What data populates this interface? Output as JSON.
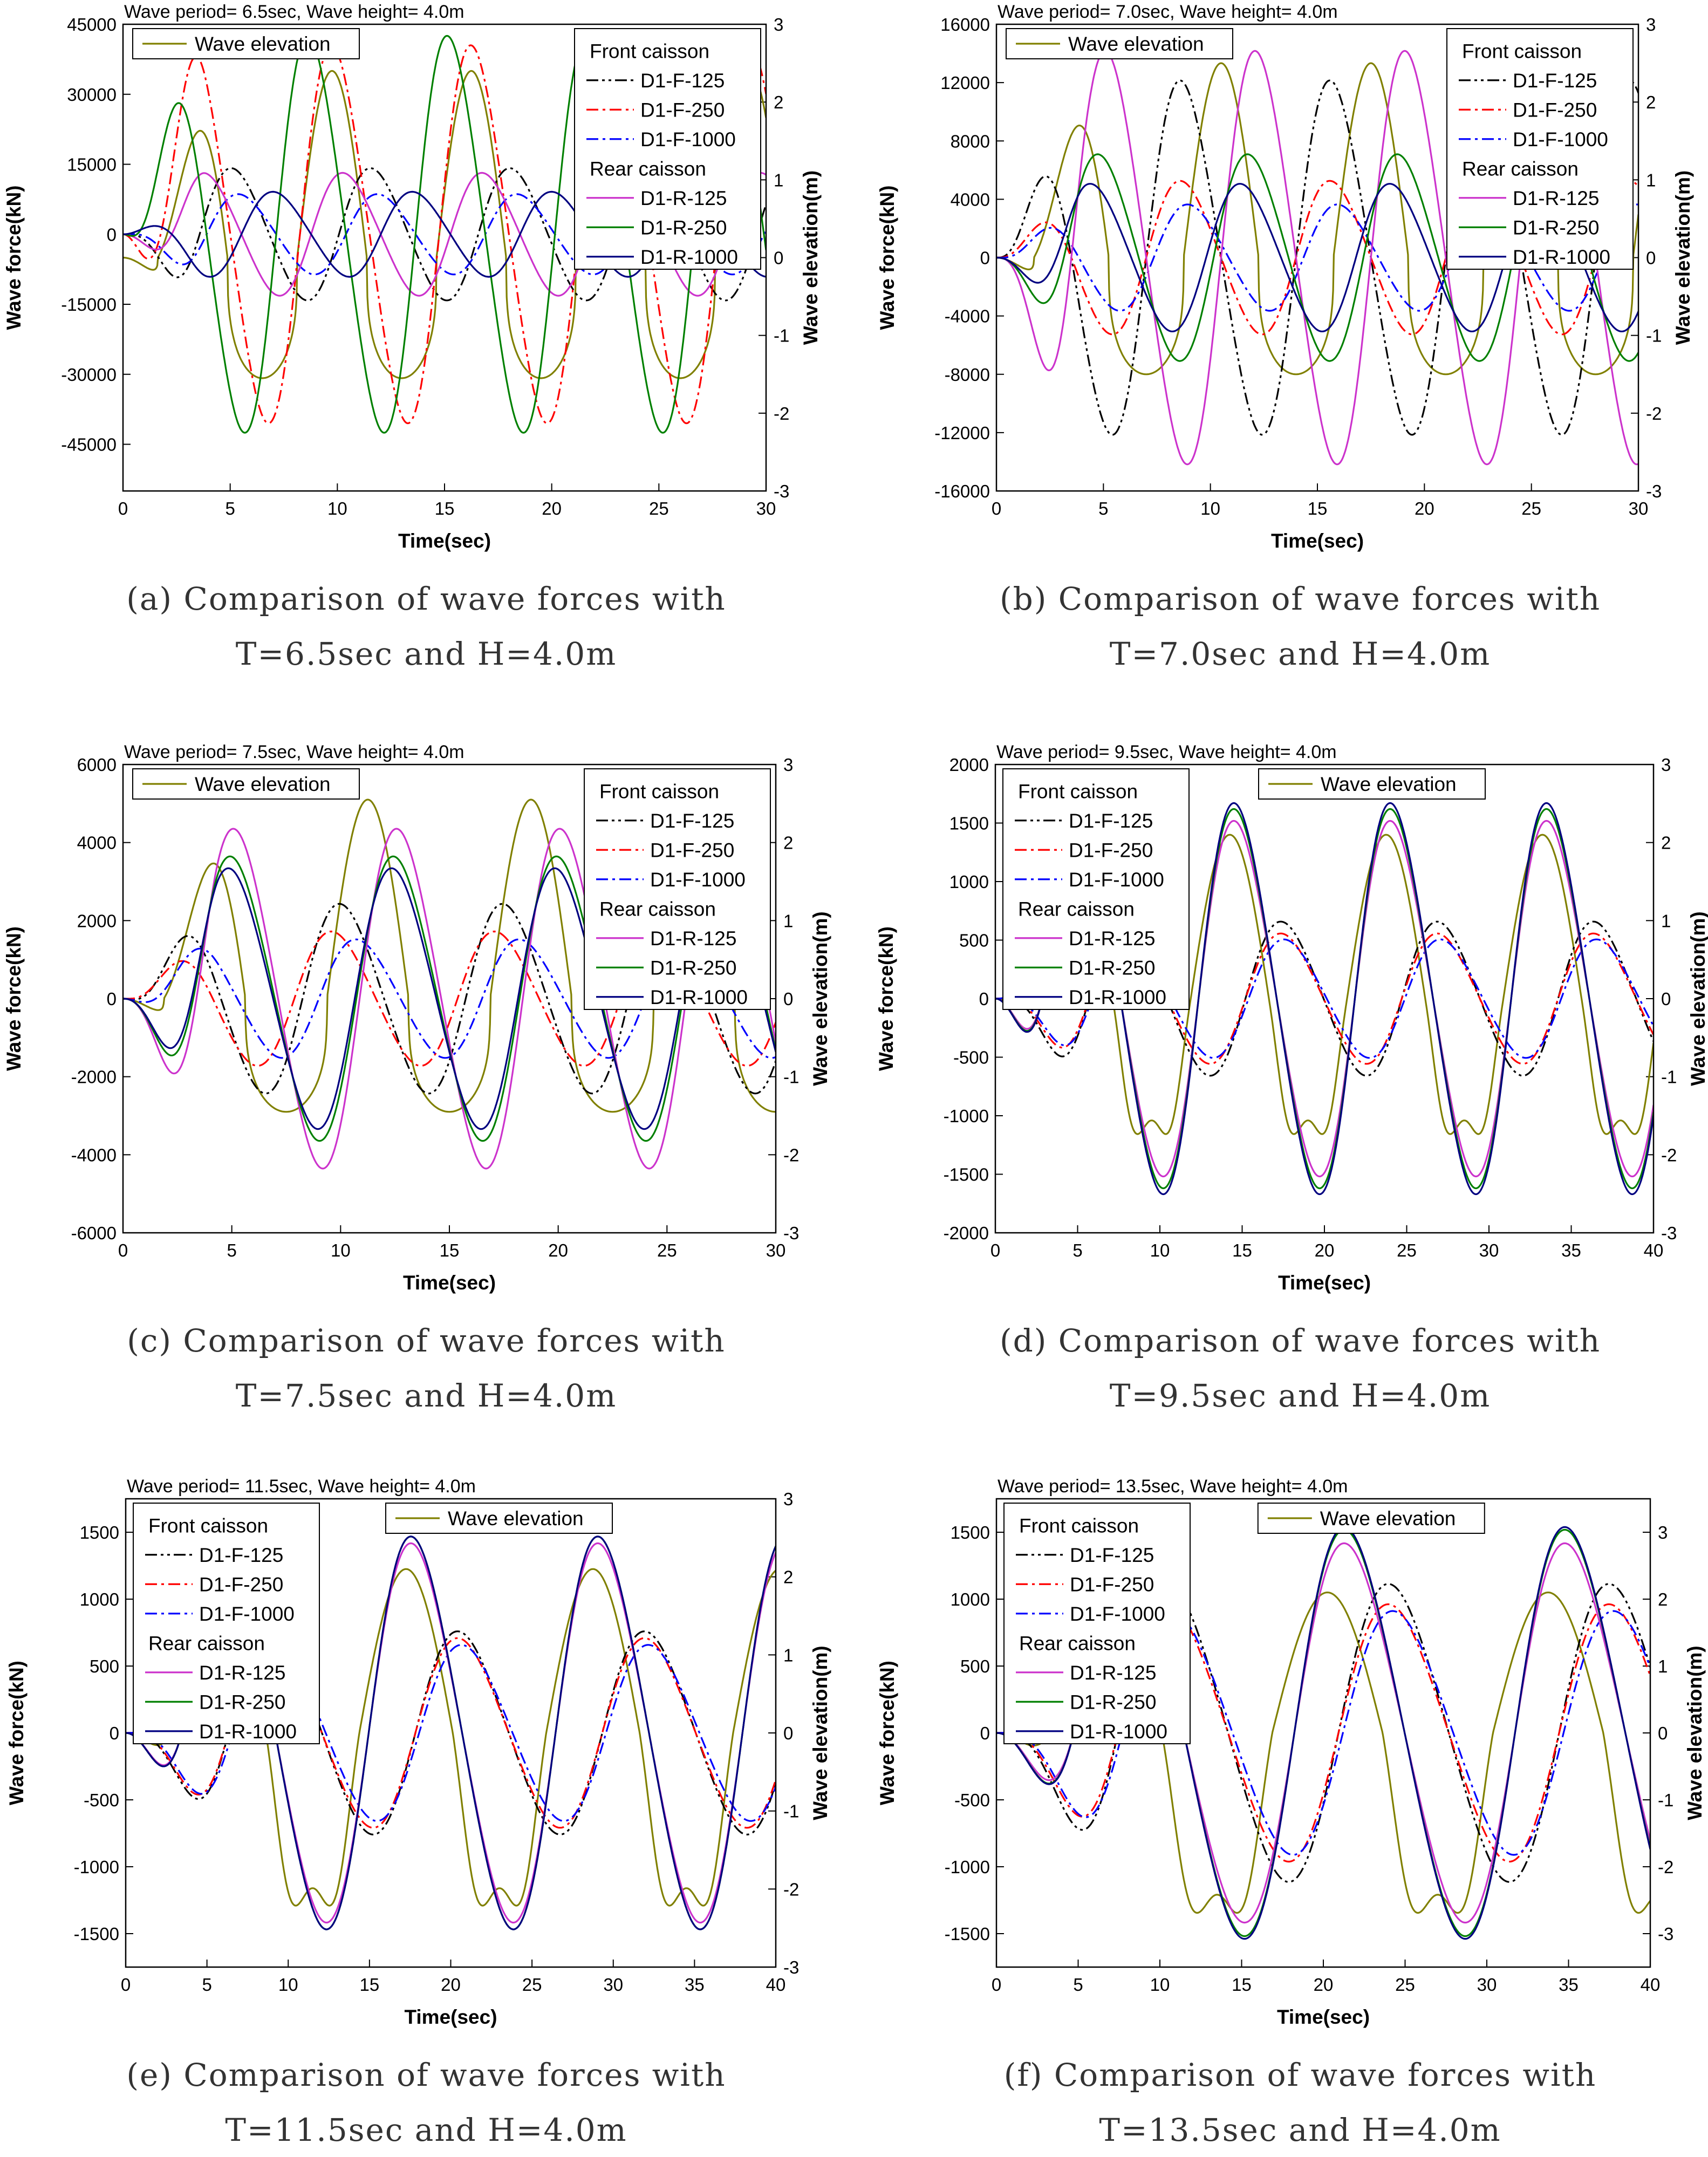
{
  "chart_data": [
    {
      "id": "a",
      "type": "line",
      "title": "Wave period= 6.5sec, Wave height= 4.0m",
      "xlabel": "Time(sec)",
      "ylabel": "Wave force(kN)",
      "y2label": "Wave elevation(m)",
      "xlim": [
        0,
        30
      ],
      "ylim": [
        -55000,
        45000
      ],
      "y2lim": [
        -3,
        3
      ],
      "xticks": [
        0,
        5,
        10,
        15,
        20,
        25,
        30
      ],
      "yticks": [
        -45000,
        -30000,
        -15000,
        0,
        15000,
        30000,
        45000
      ],
      "y2ticks": [
        -3,
        -2,
        -1,
        0,
        1,
        2,
        3
      ],
      "period": 6.5,
      "caption": [
        "(a) Comparison of wave forces with",
        "T=6.5sec and H=4.0m"
      ],
      "legend_elev": {
        "label": "Wave elevation",
        "position": "top-left"
      },
      "legend_main": {
        "position": "top-right",
        "front_header": "Front caisson",
        "rear_header": "Rear caisson"
      },
      "elevation": {
        "name": "Wave elevation",
        "color": "#808000",
        "amp_pos": 2.4,
        "amp_neg": 1.55,
        "flat_neg": true
      },
      "series": [
        {
          "name": "D1-F-125",
          "group": "front",
          "color": "#000000",
          "dash": "dashdotdot",
          "amp": 14000,
          "phase": 0.55
        },
        {
          "name": "D1-F-250",
          "group": "front",
          "color": "#ff0000",
          "dash": "dashdot",
          "amp": 40000,
          "phase": 0.27
        },
        {
          "name": "D1-F-1000",
          "group": "front",
          "color": "#0000ff",
          "dash": "dashdot",
          "amp": 8500,
          "phase": 0.6
        },
        {
          "name": "D1-R-125",
          "group": "rear",
          "color": "#cc33cc",
          "dash": "solid",
          "amp": 13000,
          "phase": 0.35
        },
        {
          "name": "D1-R-250",
          "group": "rear",
          "color": "#008000",
          "dash": "solid",
          "amp": 42000,
          "phase": 0.1
        },
        {
          "name": "D1-R-1000",
          "group": "rear",
          "color": "#000080",
          "dash": "solid",
          "amp": 9000,
          "phase": 0.85
        }
      ]
    },
    {
      "id": "b",
      "type": "line",
      "title": "Wave period= 7.0sec, Wave height= 4.0m",
      "xlabel": "Time(sec)",
      "ylabel": "Wave force(kN)",
      "y2label": "Wave elevation(m)",
      "xlim": [
        0,
        30
      ],
      "ylim": [
        -16000,
        16000
      ],
      "y2lim": [
        -3,
        3
      ],
      "xticks": [
        0,
        5,
        10,
        15,
        20,
        25,
        30
      ],
      "yticks": [
        -16000,
        -12000,
        -8000,
        -4000,
        0,
        4000,
        8000,
        12000,
        16000
      ],
      "y2ticks": [
        -3,
        -2,
        -1,
        0,
        1,
        2,
        3
      ],
      "period": 7.0,
      "caption": [
        "(b) Comparison of wave forces with",
        "T=7.0sec and H=4.0m"
      ],
      "legend_elev": {
        "label": "Wave elevation",
        "position": "top-left"
      },
      "legend_main": {
        "position": "top-right",
        "front_header": "Front caisson",
        "rear_header": "Rear caisson"
      },
      "elevation": {
        "name": "Wave elevation",
        "color": "#808000",
        "amp_pos": 2.5,
        "amp_neg": 1.5,
        "flat_neg": true
      },
      "series": [
        {
          "name": "D1-F-125",
          "group": "front",
          "color": "#000000",
          "dash": "dashdotdot",
          "amp": 12000,
          "phase": 0.0
        },
        {
          "name": "D1-F-250",
          "group": "front",
          "color": "#ff0000",
          "dash": "dashdot",
          "amp": 5200,
          "phase": 0.0
        },
        {
          "name": "D1-F-1000",
          "group": "front",
          "color": "#0000ff",
          "dash": "dashdot",
          "amp": 3600,
          "phase": 0.05
        },
        {
          "name": "D1-R-125",
          "group": "rear",
          "color": "#cc33cc",
          "dash": "solid",
          "amp": 14000,
          "phase": 0.5
        },
        {
          "name": "D1-R-250",
          "group": "rear",
          "color": "#008000",
          "dash": "solid",
          "amp": 7000,
          "phase": 0.45
        },
        {
          "name": "D1-R-1000",
          "group": "rear",
          "color": "#000080",
          "dash": "solid",
          "amp": 5000,
          "phase": 0.4
        }
      ]
    },
    {
      "id": "c",
      "type": "line",
      "title": "Wave period= 7.5sec, Wave height= 4.0m",
      "xlabel": "Time(sec)",
      "ylabel": "Wave force(kN)",
      "y2label": "Wave elevation(m)",
      "xlim": [
        0,
        30
      ],
      "ylim": [
        -6000,
        6000
      ],
      "y2lim": [
        -3,
        3
      ],
      "xticks": [
        0,
        5,
        10,
        15,
        20,
        25,
        30
      ],
      "yticks": [
        -6000,
        -4000,
        -2000,
        0,
        2000,
        4000,
        6000
      ],
      "y2ticks": [
        -3,
        -2,
        -1,
        0,
        1,
        2,
        3
      ],
      "period": 7.5,
      "caption": [
        "(c) Comparison of wave forces with",
        "T=7.5sec and H=4.0m"
      ],
      "legend_elev": {
        "label": "Wave elevation",
        "position": "top-left"
      },
      "legend_main": {
        "position": "top-right",
        "front_header": "Front caisson",
        "rear_header": "Rear caisson"
      },
      "elevation": {
        "name": "Wave elevation",
        "color": "#808000",
        "amp_pos": 2.55,
        "amp_neg": 1.45,
        "flat_neg": true
      },
      "series": [
        {
          "name": "D1-F-125",
          "group": "front",
          "color": "#000000",
          "dash": "dashdotdot",
          "amp": 2400,
          "phase": 0.1
        },
        {
          "name": "D1-F-250",
          "group": "front",
          "color": "#ff0000",
          "dash": "dashdot",
          "amp": 1700,
          "phase": 0.05
        },
        {
          "name": "D1-F-1000",
          "group": "front",
          "color": "#0000ff",
          "dash": "dashdot",
          "amp": 1500,
          "phase": 0.2
        },
        {
          "name": "D1-R-125",
          "group": "rear",
          "color": "#cc33cc",
          "dash": "solid",
          "amp": 4300,
          "phase": 0.45
        },
        {
          "name": "D1-R-250",
          "group": "rear",
          "color": "#008000",
          "dash": "solid",
          "amp": 3600,
          "phase": 0.43
        },
        {
          "name": "D1-R-1000",
          "group": "rear",
          "color": "#000080",
          "dash": "solid",
          "amp": 3300,
          "phase": 0.42
        }
      ]
    },
    {
      "id": "d",
      "type": "line",
      "title": "Wave period= 9.5sec, Wave height= 4.0m",
      "xlabel": "Time(sec)",
      "ylabel": "Wave force(kN)",
      "y2label": "Wave elevation(m)",
      "xlim": [
        0,
        40
      ],
      "ylim": [
        -2000,
        2000
      ],
      "y2lim": [
        -3,
        3
      ],
      "xticks": [
        0,
        5,
        10,
        15,
        20,
        25,
        30,
        35,
        40
      ],
      "yticks": [
        -2000,
        -1500,
        -1000,
        -500,
        0,
        500,
        1000,
        1500,
        2000
      ],
      "y2ticks": [
        -3,
        -2,
        -1,
        0,
        1,
        2,
        3
      ],
      "period": 9.5,
      "caption": [
        "(d) Comparison of wave forces with",
        "T=9.5sec and H=4.0m"
      ],
      "legend_elev": {
        "label": "Wave elevation",
        "position": "top-center"
      },
      "legend_main": {
        "position": "top-left",
        "front_header": "Front caisson",
        "rear_header": "Rear caisson"
      },
      "elevation": {
        "name": "Wave elevation",
        "color": "#808000",
        "amp_pos": 2.1,
        "amp_neg": 2.0,
        "flat_neg": false
      },
      "series": [
        {
          "name": "D1-F-125",
          "group": "front",
          "color": "#000000",
          "dash": "dashdotdot",
          "amp": 650,
          "phase": 0.6
        },
        {
          "name": "D1-F-250",
          "group": "front",
          "color": "#ff0000",
          "dash": "dashdot",
          "amp": 550,
          "phase": 0.6
        },
        {
          "name": "D1-F-1000",
          "group": "front",
          "color": "#0000ff",
          "dash": "dashdot",
          "amp": 500,
          "phase": 0.62
        },
        {
          "name": "D1-R-125",
          "group": "rear",
          "color": "#cc33cc",
          "dash": "solid",
          "amp": 1500,
          "phase": 0.3
        },
        {
          "name": "D1-R-250",
          "group": "rear",
          "color": "#008000",
          "dash": "solid",
          "amp": 1600,
          "phase": 0.3
        },
        {
          "name": "D1-R-1000",
          "group": "rear",
          "color": "#000080",
          "dash": "solid",
          "amp": 1650,
          "phase": 0.3
        }
      ]
    },
    {
      "id": "e",
      "type": "line",
      "title": "Wave period= 11.5sec, Wave height= 4.0m",
      "xlabel": "Time(sec)",
      "ylabel": "Wave force(kN)",
      "y2label": "Wave elevation(m)",
      "xlim": [
        0,
        40
      ],
      "ylim": [
        -1750,
        1750
      ],
      "y2lim": [
        -3,
        3
      ],
      "xticks": [
        0,
        5,
        10,
        15,
        20,
        25,
        30,
        35,
        40
      ],
      "yticks": [
        -1500,
        -1000,
        -500,
        0,
        500,
        1000,
        1500
      ],
      "y2ticks": [
        -3,
        -2,
        -1,
        0,
        1,
        2,
        3
      ],
      "period": 11.5,
      "caption": [
        "(e) Comparison of wave forces with",
        "T=11.5sec and H=4.0m"
      ],
      "legend_elev": {
        "label": "Wave elevation",
        "position": "top-center"
      },
      "legend_main": {
        "position": "top-left",
        "front_header": "Front caisson",
        "rear_header": "Rear caisson"
      },
      "elevation": {
        "name": "Wave elevation",
        "color": "#808000",
        "amp_pos": 2.1,
        "amp_neg": 2.55,
        "flat_neg": false
      },
      "series": [
        {
          "name": "D1-F-125",
          "group": "front",
          "color": "#000000",
          "dash": "dashdotdot",
          "amp": 750,
          "phase": 0.55
        },
        {
          "name": "D1-F-250",
          "group": "front",
          "color": "#ff0000",
          "dash": "dashdot",
          "amp": 700,
          "phase": 0.55
        },
        {
          "name": "D1-F-1000",
          "group": "front",
          "color": "#0000ff",
          "dash": "dashdot",
          "amp": 650,
          "phase": 0.57
        },
        {
          "name": "D1-R-125",
          "group": "rear",
          "color": "#cc33cc",
          "dash": "solid",
          "amp": 1400,
          "phase": 0.3
        },
        {
          "name": "D1-R-250",
          "group": "rear",
          "color": "#008000",
          "dash": "solid",
          "amp": 1450,
          "phase": 0.3
        },
        {
          "name": "D1-R-1000",
          "group": "rear",
          "color": "#000080",
          "dash": "solid",
          "amp": 1450,
          "phase": 0.3
        }
      ]
    },
    {
      "id": "f",
      "type": "line",
      "title": "Wave period= 13.5sec, Wave height= 4.0m",
      "xlabel": "Time(sec)",
      "ylabel": "Wave force(kN)",
      "y2label": "Wave elevation(m)",
      "xlim": [
        0,
        40
      ],
      "ylim": [
        -1750,
        1750
      ],
      "y2lim": [
        -3.5,
        3.5
      ],
      "xticks": [
        0,
        5,
        10,
        15,
        20,
        25,
        30,
        35,
        40
      ],
      "yticks": [
        -1500,
        -1000,
        -500,
        0,
        500,
        1000,
        1500
      ],
      "y2ticks": [
        -3,
        -2,
        -1,
        0,
        1,
        2,
        3
      ],
      "period": 13.5,
      "caption": [
        "(f) Comparison of wave forces with",
        "T=13.5sec and H=4.0m"
      ],
      "legend_elev": {
        "label": "Wave elevation",
        "position": "top-center"
      },
      "legend_main": {
        "position": "top-left",
        "front_header": "Front caisson",
        "rear_header": "Rear caisson"
      },
      "elevation": {
        "name": "Wave elevation",
        "color": "#808000",
        "amp_pos": 2.1,
        "amp_neg": 3.1,
        "flat_neg": false
      },
      "series": [
        {
          "name": "D1-F-125",
          "group": "front",
          "color": "#000000",
          "dash": "dashdotdot",
          "amp": 1100,
          "phase": 0.55
        },
        {
          "name": "D1-F-250",
          "group": "front",
          "color": "#ff0000",
          "dash": "dashdot",
          "amp": 950,
          "phase": 0.55
        },
        {
          "name": "D1-F-1000",
          "group": "front",
          "color": "#0000ff",
          "dash": "dashdot",
          "amp": 900,
          "phase": 0.57
        },
        {
          "name": "D1-R-125",
          "group": "rear",
          "color": "#cc33cc",
          "dash": "solid",
          "amp": 1400,
          "phase": 0.35
        },
        {
          "name": "D1-R-250",
          "group": "rear",
          "color": "#008000",
          "dash": "solid",
          "amp": 1500,
          "phase": 0.35
        },
        {
          "name": "D1-R-1000",
          "group": "rear",
          "color": "#000080",
          "dash": "solid",
          "amp": 1520,
          "phase": 0.35
        }
      ]
    }
  ]
}
